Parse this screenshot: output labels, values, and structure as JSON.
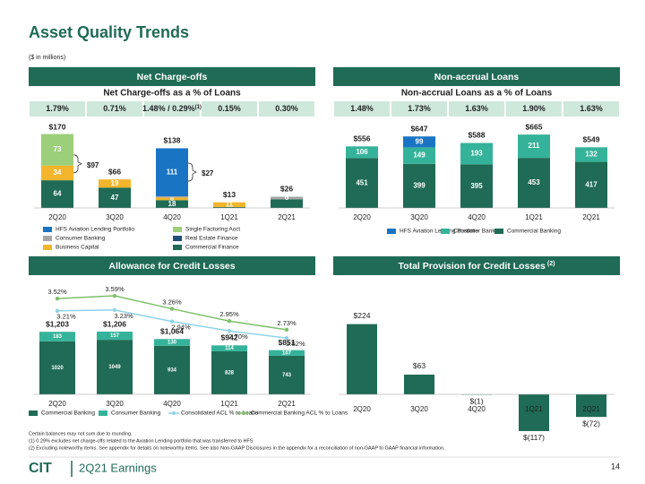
{
  "title": "Asset Quality Trends",
  "unit_note": "($ in millions)",
  "chart_data": [
    {
      "type": "stacked_bar",
      "header": "Net Charge-offs",
      "subtitle": "Net Charge-offs as a % of Loans",
      "ratios": [
        "1.79%",
        "0.71%",
        "1.48% / 0.29%",
        "0.15%",
        "0.30%"
      ],
      "ratio_note": "(1)",
      "categories": [
        "2Q20",
        "3Q20",
        "4Q20",
        "1Q21",
        "2Q21"
      ],
      "series": [
        {
          "name": "HFS Aviation Lending Portfolio",
          "color": "#1a74c4",
          "values": [
            null,
            null,
            111,
            null,
            null
          ]
        },
        {
          "name": "Single Factoring Acct",
          "color": "#9ccf7a",
          "values": [
            73,
            null,
            null,
            null,
            null
          ]
        },
        {
          "name": "Consumer Banking",
          "color": "#a6a6a6",
          "values": [
            null,
            null,
            3,
            null,
            6
          ],
          "value_labels": [
            null,
            null,
            null,
            null,
            "6"
          ]
        },
        {
          "name": "Real Estate Finance",
          "color": "#1f4e79",
          "values": [
            null,
            null,
            null,
            null,
            null
          ]
        },
        {
          "name": "Business Capital",
          "color": "#f2b52b",
          "values": [
            34,
            19,
            6,
            11,
            null
          ]
        },
        {
          "name": "Commercial Finance",
          "color": "#1f6b55",
          "values": [
            64,
            47,
            18,
            2,
            20
          ],
          "value_labels": [
            "64",
            "47",
            "18",
            null,
            null
          ]
        }
      ],
      "totals": [
        170,
        66,
        138,
        13,
        26
      ],
      "total_labels": [
        "$170",
        "$66",
        "$138",
        "$13",
        "$26"
      ],
      "annotations": [
        "$97",
        "$27"
      ]
    },
    {
      "type": "stacked_bar",
      "header": "Non-accrual Loans",
      "subtitle": "Non-accrual Loans as a % of Loans",
      "ratios": [
        "1.48%",
        "1.73%",
        "1.63%",
        "1.90%",
        "1.63%"
      ],
      "categories": [
        "2Q20",
        "3Q20",
        "4Q20",
        "1Q21",
        "2Q21"
      ],
      "series": [
        {
          "name": "HFS Aviation Lending Portfolio",
          "color": "#1a74c4",
          "values": [
            null,
            99,
            null,
            null,
            null
          ]
        },
        {
          "name": "Consumer Banking",
          "color": "#35b39a",
          "values": [
            106,
            149,
            193,
            211,
            132
          ]
        },
        {
          "name": "Commercial Banking",
          "color": "#1f6b55",
          "values": [
            451,
            399,
            395,
            453,
            417
          ]
        }
      ],
      "totals": [
        556,
        647,
        588,
        665,
        549
      ],
      "total_labels": [
        "$556",
        "$647",
        "$588",
        "$665",
        "$549"
      ]
    },
    {
      "type": "combo",
      "header": "Allowance for Credit Losses",
      "categories": [
        "2Q20",
        "3Q20",
        "4Q20",
        "1Q21",
        "2Q21"
      ],
      "series": [
        {
          "name": "Commercial Banking",
          "type": "bar",
          "color": "#1f6b55",
          "values": [
            1020,
            1049,
            934,
            828,
            743
          ]
        },
        {
          "name": "Consumer Banking",
          "type": "bar",
          "color": "#35b39a",
          "values": [
            183,
            157,
            130,
            114,
            107
          ]
        },
        {
          "name": "Consolidated ACL % to Loans",
          "type": "line",
          "color": "#8fd3e8",
          "values": [
            3.21,
            3.23,
            2.94,
            2.7,
            2.52
          ],
          "value_labels": [
            "3.21%",
            "3.23%",
            "2.94%",
            "2.70%",
            "2.52%"
          ]
        },
        {
          "name": "Commercial Banking ACL % to Loans",
          "type": "line",
          "color": "#7dc06a",
          "values": [
            3.52,
            3.59,
            3.26,
            2.95,
            2.73
          ],
          "value_labels": [
            "3.52%",
            "3.59%",
            "3.26%",
            "2.95%",
            "2.73%"
          ]
        }
      ],
      "totals": [
        1203,
        1206,
        1064,
        942,
        851
      ],
      "total_labels": [
        "$1,203",
        "$1,206",
        "$1,064",
        "$942",
        "$851"
      ]
    },
    {
      "type": "bar",
      "header": "Total Provision for Credit Losses",
      "header_note": "(2)",
      "categories": [
        "2Q20",
        "3Q20",
        "4Q20",
        "1Q21",
        "2Q21"
      ],
      "color": "#1f6b55",
      "values": [
        224,
        63,
        -1,
        -117,
        -72
      ],
      "value_labels": [
        "$224",
        "$63",
        "$(1)",
        "$(117)",
        "$(72)"
      ]
    }
  ],
  "footnotes": [
    "Certain balances may not sum due to rounding.",
    "(1)   0.29% excludes net charge-offs related to the Aviation Lending portfolio that was transferred to HFS",
    "(2)   Excluding noteworthy items. See appendix for details on noteworthy items. See also Non-GAAP Disclosures in the appendix for a reconciliation of non-GAAP to GAAP financial information."
  ],
  "footer": {
    "brand": "CIT",
    "label": "2Q21 Earnings",
    "page": "14"
  }
}
